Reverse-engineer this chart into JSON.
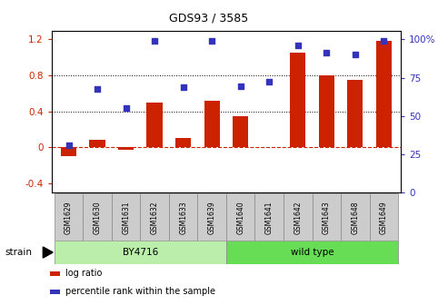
{
  "title": "GDS93 / 3585",
  "samples": [
    "GSM1629",
    "GSM1630",
    "GSM1631",
    "GSM1632",
    "GSM1633",
    "GSM1639",
    "GSM1640",
    "GSM1641",
    "GSM1642",
    "GSM1643",
    "GSM1648",
    "GSM1649"
  ],
  "log_ratio": [
    -0.1,
    0.08,
    -0.03,
    0.5,
    0.1,
    0.52,
    0.35,
    0.0,
    1.05,
    0.8,
    0.75,
    1.18
  ],
  "percentile_left_scale": [
    0.02,
    0.65,
    0.44,
    1.18,
    0.67,
    1.18,
    0.68,
    0.73,
    1.13,
    1.05,
    1.03,
    1.18
  ],
  "bar_color": "#cc2200",
  "dot_color": "#3333bb",
  "zero_line_color": "#cc2200",
  "ylim_left": [
    -0.5,
    1.3
  ],
  "yticks_left": [
    -0.4,
    0.0,
    0.4,
    0.8,
    1.2
  ],
  "ytick_labels_left": [
    "-0.4",
    "0",
    "0.4",
    "0.8",
    "1.2"
  ],
  "yticks_right": [
    0,
    25,
    50,
    75,
    100
  ],
  "ytick_labels_right": [
    "0",
    "25",
    "50",
    "75",
    "100%"
  ],
  "dotted_lines": [
    0.4,
    0.8
  ],
  "strain_groups": [
    {
      "label": "BY4716",
      "start": 0,
      "end": 6,
      "color": "#bbeeaa"
    },
    {
      "label": "wild type",
      "start": 6,
      "end": 12,
      "color": "#66dd55"
    }
  ],
  "strain_label": "strain",
  "legend": [
    {
      "color": "#cc2200",
      "label": "log ratio"
    },
    {
      "color": "#3333bb",
      "label": "percentile rank within the sample"
    }
  ],
  "bar_width": 0.55,
  "sample_box_color": "#cccccc",
  "title_fontsize": 9,
  "tick_fontsize": 7.5,
  "sample_fontsize": 5.5,
  "strain_fontsize": 7.5,
  "legend_fontsize": 7
}
